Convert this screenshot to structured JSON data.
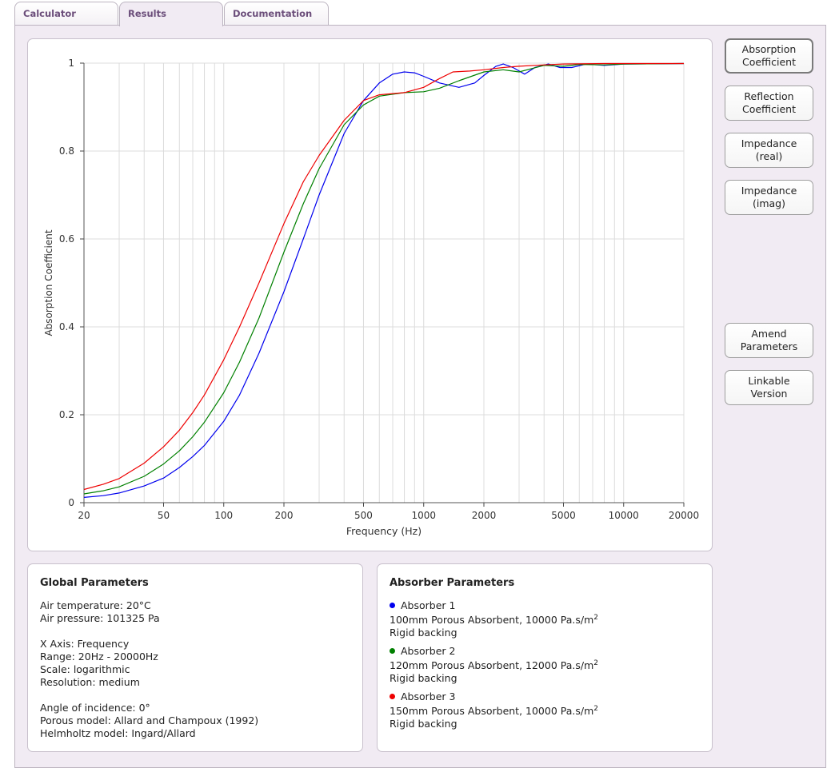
{
  "tabs": [
    {
      "label": "Calculator"
    },
    {
      "label": "Results"
    },
    {
      "label": "Documentation"
    }
  ],
  "side_buttons": {
    "absorption": {
      "line1": "Absorption",
      "line2": "Coefficient"
    },
    "reflection": {
      "line1": "Reflection",
      "line2": "Coefficient"
    },
    "imp_real": {
      "line1": "Impedance",
      "line2": "(real)"
    },
    "imp_imag": {
      "line1": "Impedance",
      "line2": "(imag)"
    },
    "amend": {
      "line1": "Amend",
      "line2": "Parameters"
    },
    "linkable": {
      "line1": "Linkable",
      "line2": "Version"
    }
  },
  "global_params": {
    "title": "Global Parameters",
    "air_temperature": "Air temperature: 20°C",
    "air_pressure": "Air pressure: 101325 Pa",
    "x_axis": "X Axis: Frequency",
    "range": "Range: 20Hz - 20000Hz",
    "scale": "Scale: logarithmic",
    "resolution": "Resolution: medium",
    "angle": "Angle of incidence: 0°",
    "porous_model": "Porous model: Allard and Champoux (1992)",
    "helmholtz_model": "Helmholtz model: Ingard/Allard"
  },
  "absorber_params": {
    "title": "Absorber Parameters",
    "absorbers": [
      {
        "name": "Absorber 1",
        "desc": "100mm Porous Absorbent, 10000 Pa.s/m",
        "sup": "2",
        "backing": "Rigid backing",
        "color": "#0000ee"
      },
      {
        "name": "Absorber 2",
        "desc": "120mm Porous Absorbent, 12000 Pa.s/m",
        "sup": "2",
        "backing": "Rigid backing",
        "color": "#008000"
      },
      {
        "name": "Absorber 3",
        "desc": "150mm Porous Absorbent, 10000 Pa.s/m",
        "sup": "2",
        "backing": "Rigid backing",
        "color": "#ee0000"
      }
    ]
  },
  "chart_data": {
    "type": "line",
    "xlabel": "Frequency (Hz)",
    "ylabel": "Absorption Coefficient",
    "xscale": "log",
    "xlim": [
      20,
      20000
    ],
    "ylim": [
      0,
      1
    ],
    "x_ticks": [
      20,
      50,
      100,
      200,
      500,
      1000,
      2000,
      5000,
      10000,
      20000
    ],
    "y_ticks": [
      0,
      0.2,
      0.4,
      0.6,
      0.8,
      1
    ],
    "y_tick_labels": [
      "0",
      "0.2",
      "0.4",
      "0.6",
      "0.8",
      "1"
    ],
    "grid": true,
    "series": [
      {
        "name": "Absorber 1",
        "color": "#0000ee",
        "points": [
          [
            20,
            0.012
          ],
          [
            25,
            0.016
          ],
          [
            30,
            0.022
          ],
          [
            40,
            0.038
          ],
          [
            50,
            0.056
          ],
          [
            60,
            0.08
          ],
          [
            70,
            0.105
          ],
          [
            80,
            0.13
          ],
          [
            100,
            0.185
          ],
          [
            120,
            0.245
          ],
          [
            150,
            0.34
          ],
          [
            200,
            0.48
          ],
          [
            250,
            0.6
          ],
          [
            300,
            0.7
          ],
          [
            400,
            0.84
          ],
          [
            500,
            0.915
          ],
          [
            600,
            0.955
          ],
          [
            700,
            0.975
          ],
          [
            800,
            0.98
          ],
          [
            900,
            0.978
          ],
          [
            1000,
            0.97
          ],
          [
            1200,
            0.955
          ],
          [
            1500,
            0.945
          ],
          [
            1800,
            0.955
          ],
          [
            2000,
            0.972
          ],
          [
            2300,
            0.993
          ],
          [
            2500,
            0.998
          ],
          [
            2800,
            0.99
          ],
          [
            3200,
            0.975
          ],
          [
            3600,
            0.99
          ],
          [
            4200,
            0.998
          ],
          [
            4800,
            0.99
          ],
          [
            5500,
            0.99
          ],
          [
            6500,
            0.998
          ],
          [
            8000,
            0.995
          ],
          [
            10000,
            0.998
          ],
          [
            20000,
            0.999
          ]
        ]
      },
      {
        "name": "Absorber 2",
        "color": "#008000",
        "points": [
          [
            20,
            0.02
          ],
          [
            25,
            0.027
          ],
          [
            30,
            0.036
          ],
          [
            40,
            0.06
          ],
          [
            50,
            0.088
          ],
          [
            60,
            0.118
          ],
          [
            70,
            0.15
          ],
          [
            80,
            0.183
          ],
          [
            100,
            0.25
          ],
          [
            120,
            0.32
          ],
          [
            150,
            0.42
          ],
          [
            200,
            0.57
          ],
          [
            250,
            0.68
          ],
          [
            300,
            0.76
          ],
          [
            400,
            0.86
          ],
          [
            500,
            0.905
          ],
          [
            600,
            0.925
          ],
          [
            800,
            0.933
          ],
          [
            1000,
            0.935
          ],
          [
            1200,
            0.943
          ],
          [
            1500,
            0.96
          ],
          [
            2000,
            0.98
          ],
          [
            2500,
            0.985
          ],
          [
            3000,
            0.98
          ],
          [
            3500,
            0.988
          ],
          [
            4000,
            0.995
          ],
          [
            5000,
            0.993
          ],
          [
            6000,
            0.997
          ],
          [
            8000,
            0.996
          ],
          [
            10000,
            0.998
          ],
          [
            20000,
            0.999
          ]
        ]
      },
      {
        "name": "Absorber 3",
        "color": "#ee0000",
        "points": [
          [
            20,
            0.03
          ],
          [
            25,
            0.042
          ],
          [
            30,
            0.055
          ],
          [
            40,
            0.09
          ],
          [
            50,
            0.127
          ],
          [
            60,
            0.165
          ],
          [
            70,
            0.205
          ],
          [
            80,
            0.245
          ],
          [
            100,
            0.325
          ],
          [
            120,
            0.4
          ],
          [
            150,
            0.5
          ],
          [
            200,
            0.635
          ],
          [
            250,
            0.73
          ],
          [
            300,
            0.79
          ],
          [
            400,
            0.87
          ],
          [
            500,
            0.915
          ],
          [
            600,
            0.928
          ],
          [
            800,
            0.933
          ],
          [
            1000,
            0.945
          ],
          [
            1200,
            0.965
          ],
          [
            1400,
            0.98
          ],
          [
            1700,
            0.982
          ],
          [
            2000,
            0.985
          ],
          [
            2500,
            0.99
          ],
          [
            3000,
            0.993
          ],
          [
            4000,
            0.996
          ],
          [
            5000,
            0.998
          ],
          [
            8000,
            0.999
          ],
          [
            20000,
            0.999
          ]
        ]
      }
    ]
  }
}
